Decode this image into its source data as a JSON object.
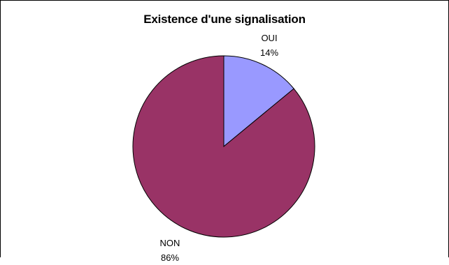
{
  "chart_data": {
    "type": "pie",
    "title": "Existence d'une signalisation",
    "slices": [
      {
        "label": "OUI",
        "value": 14,
        "percent_label": "14%",
        "color": "#9999ff"
      },
      {
        "label": "NON",
        "value": 86,
        "percent_label": "86%",
        "color": "#993366"
      }
    ],
    "start_angle_deg": 0,
    "direction": "clockwise",
    "legend": "none"
  }
}
